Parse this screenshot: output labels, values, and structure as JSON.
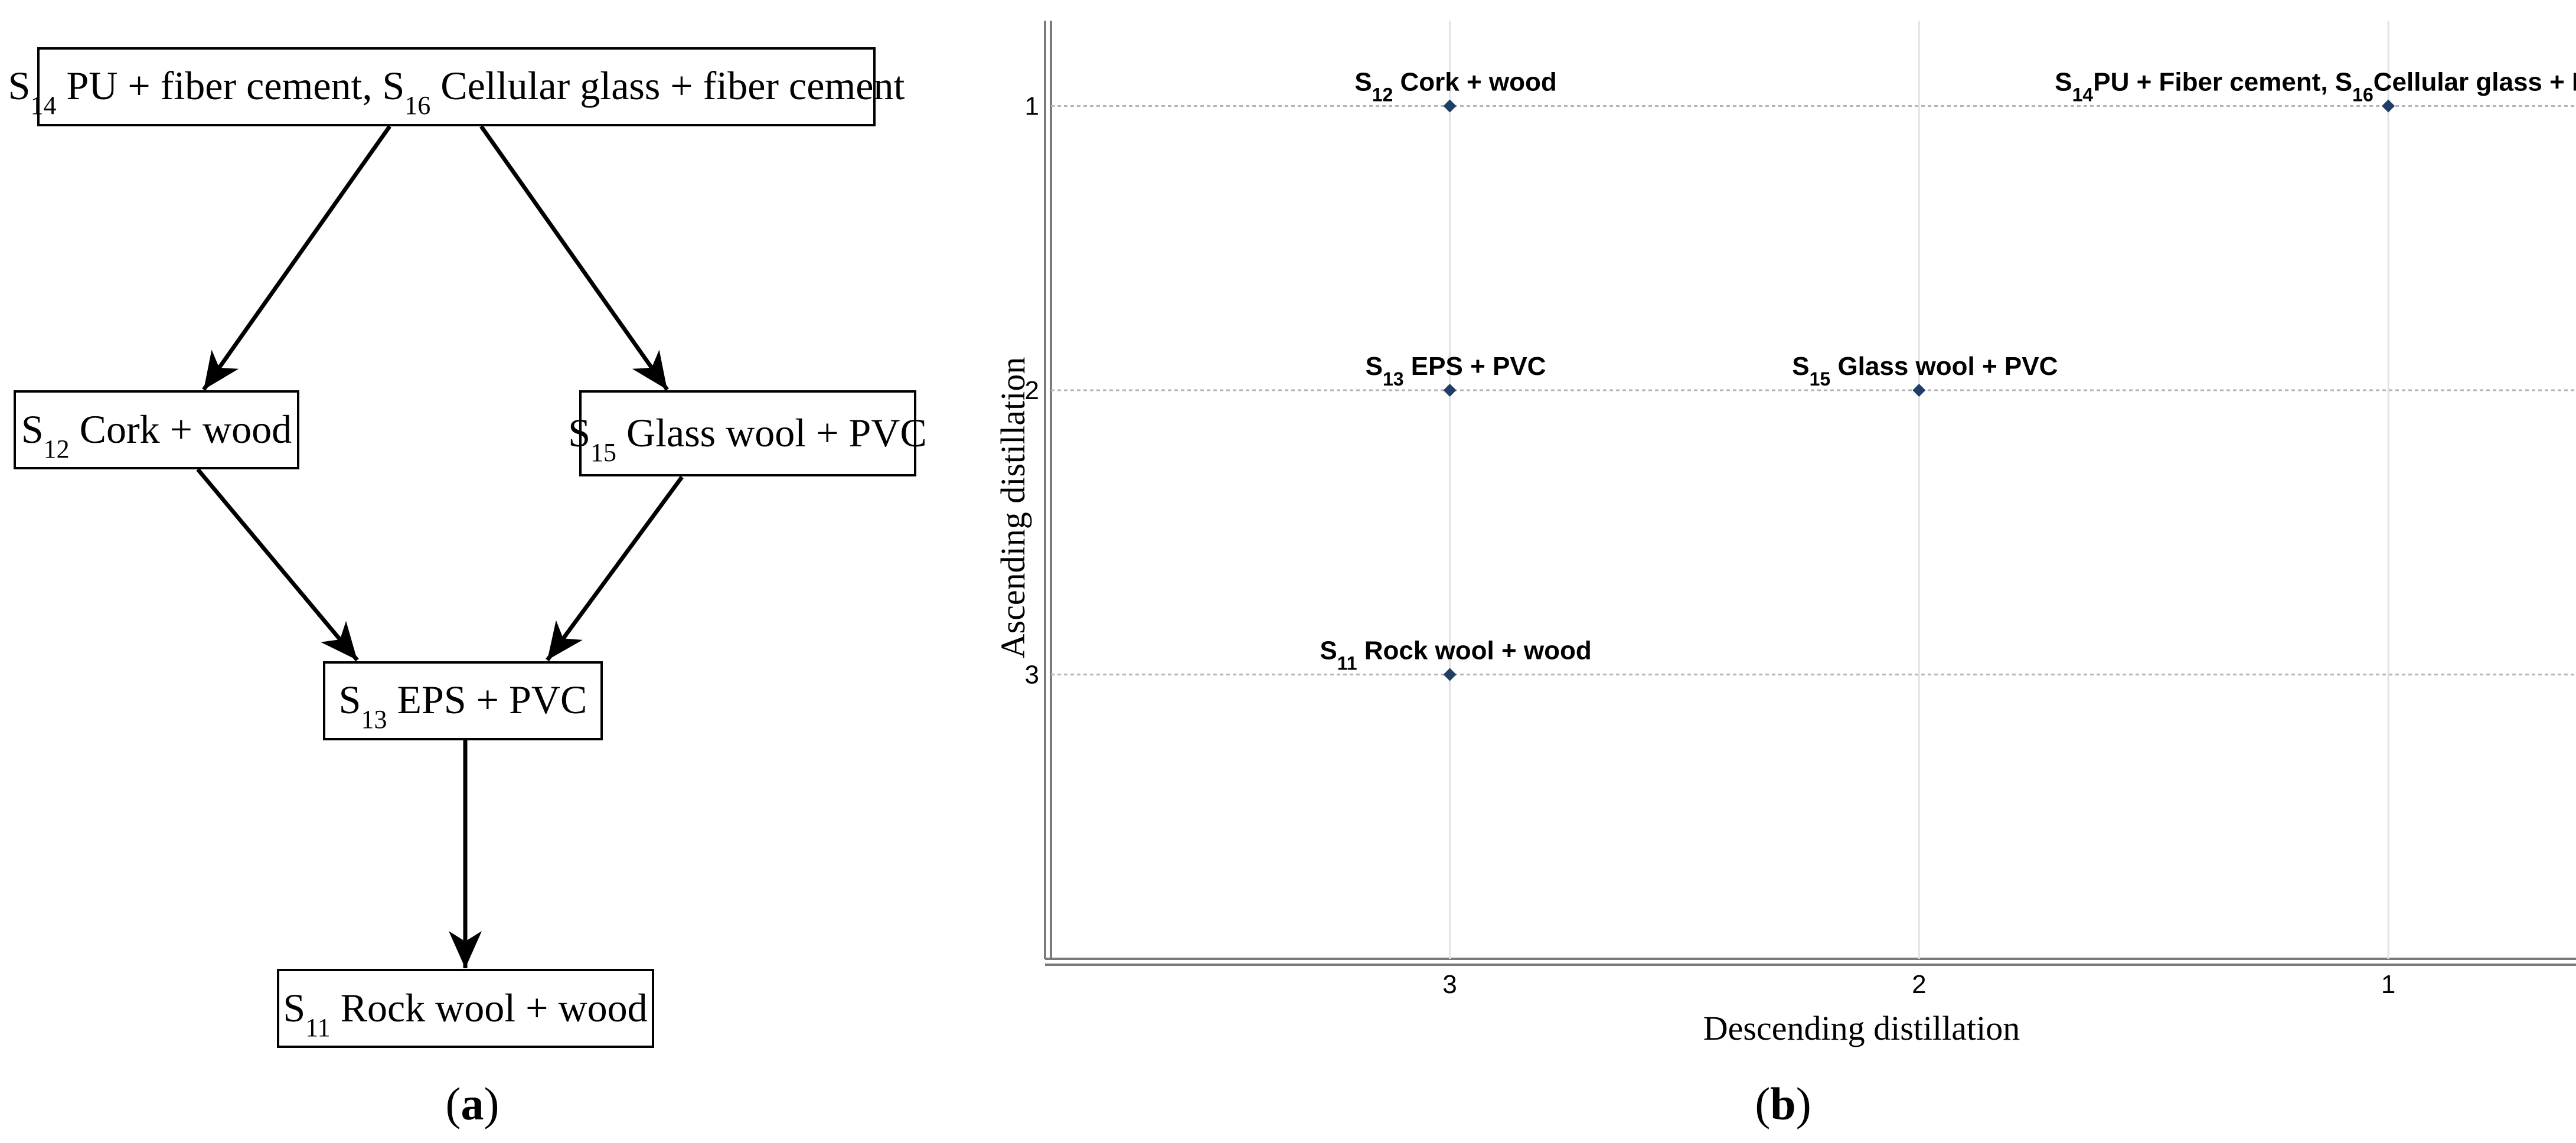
{
  "panel_a": {
    "caption": "(a)",
    "nodes": {
      "top": {
        "parts": [
          {
            "t": "S"
          },
          {
            "t": "14",
            "sub": true
          },
          {
            "t": " PU + fiber cement, S"
          },
          {
            "t": "16",
            "sub": true
          },
          {
            "t": " Cellular glass + fiber cement"
          }
        ]
      },
      "left": {
        "parts": [
          {
            "t": "S"
          },
          {
            "t": "12",
            "sub": true
          },
          {
            "t": " Cork + wood"
          }
        ]
      },
      "right": {
        "parts": [
          {
            "t": "S"
          },
          {
            "t": "15",
            "sub": true
          },
          {
            "t": " Glass wool + PVC"
          }
        ]
      },
      "middle": {
        "parts": [
          {
            "t": "S"
          },
          {
            "t": "13",
            "sub": true
          },
          {
            "t": " EPS + PVC"
          }
        ]
      },
      "bottom": {
        "parts": [
          {
            "t": "S"
          },
          {
            "t": "11",
            "sub": true
          },
          {
            "t": " Rock wool  + wood"
          }
        ]
      }
    },
    "edges": [
      [
        "top",
        "left"
      ],
      [
        "top",
        "right"
      ],
      [
        "left",
        "middle"
      ],
      [
        "right",
        "middle"
      ],
      [
        "middle",
        "bottom"
      ]
    ]
  },
  "panel_b": {
    "caption": "(b)"
  },
  "chart_data": {
    "type": "scatter",
    "xlabel": "Descending distillation",
    "ylabel": "Ascending distillation",
    "x_ticks": [
      3,
      2,
      1
    ],
    "y_ticks": [
      1,
      2,
      3
    ],
    "x_reversed": true,
    "y_reversed": true,
    "xlim": [
      3.85,
      0.6
    ],
    "ylim": [
      0.7,
      4.0
    ],
    "grid": true,
    "marker_color": "#1f3f66",
    "points": [
      {
        "x": 3,
        "y": 1,
        "label_parts": [
          {
            "t": "S"
          },
          {
            "t": "12",
            "sub": true
          },
          {
            "t": " Cork + wood"
          }
        ]
      },
      {
        "x": 1,
        "y": 1,
        "label_parts": [
          {
            "t": "S"
          },
          {
            "t": "14",
            "sub": true
          },
          {
            "t": "PU + Fiber cement, S"
          },
          {
            "t": "16",
            "sub": true
          },
          {
            "t": "Cellular glass + Fiber cement"
          }
        ]
      },
      {
        "x": 3,
        "y": 2,
        "label_parts": [
          {
            "t": "S"
          },
          {
            "t": "13",
            "sub": true
          },
          {
            "t": " EPS + PVC"
          }
        ]
      },
      {
        "x": 2,
        "y": 2,
        "label_parts": [
          {
            "t": "S"
          },
          {
            "t": "15",
            "sub": true
          },
          {
            "t": " Glass wool + PVC"
          }
        ]
      },
      {
        "x": 3,
        "y": 3,
        "label_parts": [
          {
            "t": "S"
          },
          {
            "t": "11",
            "sub": true
          },
          {
            "t": " Rock wool + wood"
          }
        ]
      }
    ]
  }
}
